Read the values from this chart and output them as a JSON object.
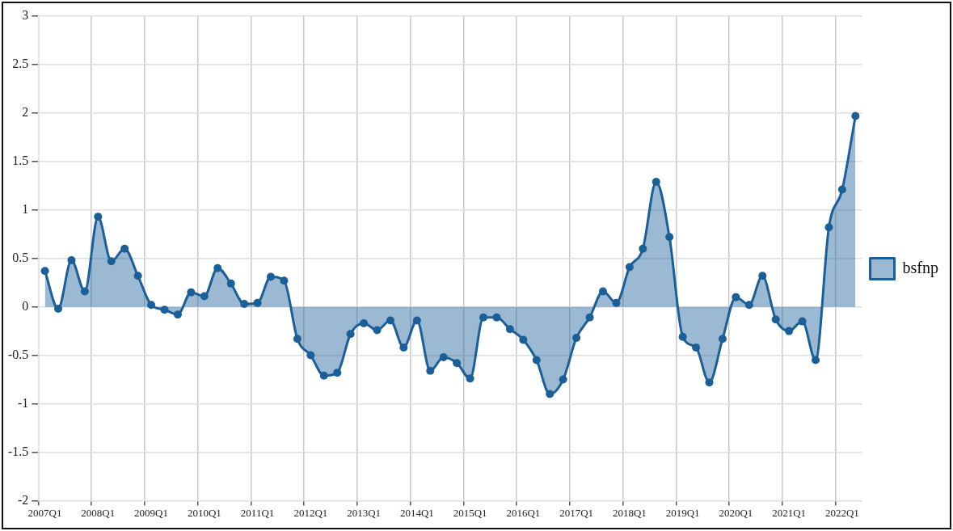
{
  "chart_data": {
    "type": "area",
    "categories": [
      "2007Q1",
      null,
      null,
      null,
      "2008Q1",
      null,
      null,
      null,
      "2009Q1",
      null,
      null,
      null,
      "2010Q1",
      null,
      null,
      null,
      "2011Q1",
      null,
      null,
      null,
      "2012Q1",
      null,
      null,
      null,
      "2013Q1",
      null,
      null,
      null,
      "2014Q1",
      null,
      null,
      null,
      "2015Q1",
      null,
      null,
      null,
      "2016Q1",
      null,
      null,
      null,
      "2017Q1",
      null,
      null,
      null,
      "2018Q1",
      null,
      null,
      null,
      "2019Q1",
      null,
      null,
      null,
      "2020Q1",
      null,
      null,
      null,
      "2021Q1",
      null,
      null,
      null,
      "2022Q1",
      null
    ],
    "series": [
      {
        "name": "bsfnp",
        "color": "#1b5f98",
        "values": [
          0.37,
          -0.02,
          0.48,
          0.16,
          0.93,
          0.47,
          0.6,
          0.32,
          0.02,
          -0.03,
          -0.08,
          0.15,
          0.11,
          0.4,
          0.24,
          0.03,
          0.04,
          0.31,
          0.27,
          -0.33,
          -0.5,
          -0.71,
          -0.68,
          -0.28,
          -0.17,
          -0.24,
          -0.14,
          -0.42,
          -0.14,
          -0.66,
          -0.52,
          -0.58,
          -0.74,
          -0.11,
          -0.11,
          -0.23,
          -0.34,
          -0.55,
          -0.9,
          -0.75,
          -0.32,
          -0.11,
          0.16,
          0.04,
          0.41,
          0.6,
          1.29,
          0.72,
          -0.31,
          -0.42,
          -0.78,
          -0.33,
          0.1,
          0.02,
          0.32,
          -0.13,
          -0.25,
          -0.15,
          -0.55,
          0.82,
          1.21,
          1.97
        ]
      }
    ],
    "ylim": [
      -2,
      3
    ],
    "yticks": [
      -2,
      -1.5,
      -1,
      -0.5,
      0,
      0.5,
      1,
      1.5,
      2,
      2.5,
      3
    ],
    "grid": true,
    "legend": "right",
    "marker": "circle",
    "line_style": "solid"
  }
}
